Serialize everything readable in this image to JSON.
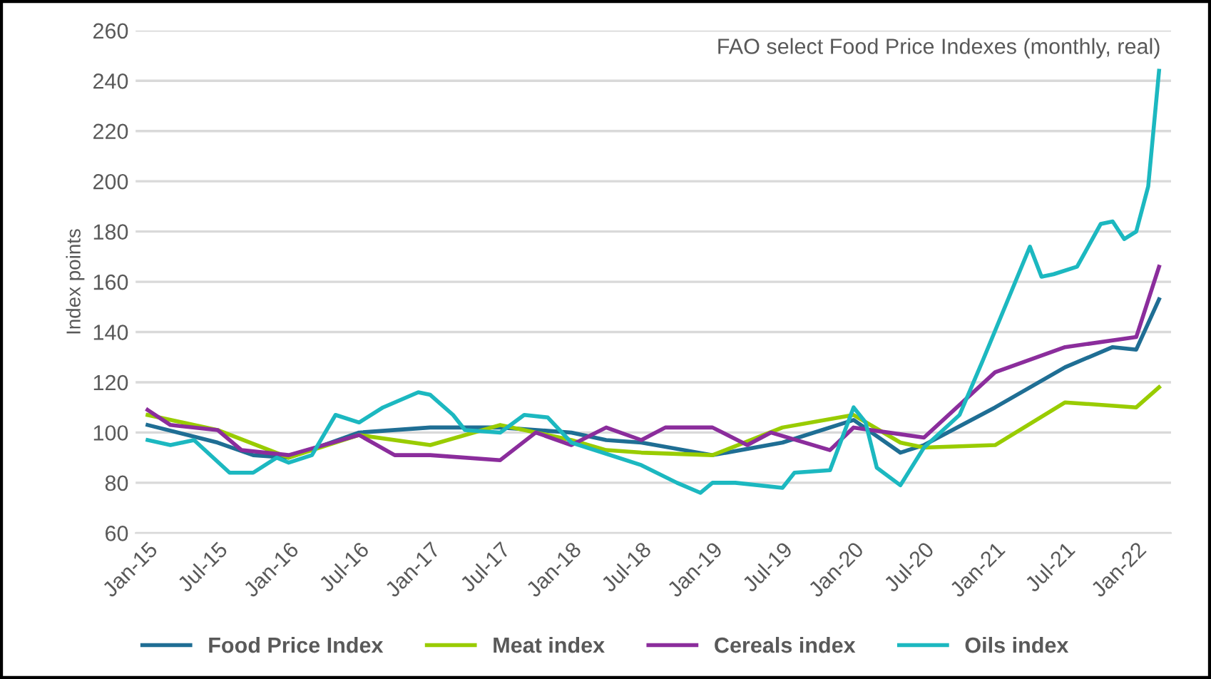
{
  "chart_data": {
    "type": "line",
    "title": "FAO select Food Price Indexes (monthly, real)",
    "ylabel": "Index points",
    "ylim": [
      60,
      260
    ],
    "yticks": [
      60,
      80,
      100,
      120,
      140,
      160,
      180,
      200,
      220,
      240,
      260
    ],
    "xlim": [
      "2014-12",
      "2022-04"
    ],
    "xticks": [
      {
        "value": "2015-01",
        "label": "Jan-15"
      },
      {
        "value": "2015-07",
        "label": "Jul-15"
      },
      {
        "value": "2016-01",
        "label": "Jan-16"
      },
      {
        "value": "2016-07",
        "label": "Jul-16"
      },
      {
        "value": "2017-01",
        "label": "Jan-17"
      },
      {
        "value": "2017-07",
        "label": "Jul-17"
      },
      {
        "value": "2018-01",
        "label": "Jan-18"
      },
      {
        "value": "2018-07",
        "label": "Jul-18"
      },
      {
        "value": "2019-01",
        "label": "Jan-19"
      },
      {
        "value": "2019-07",
        "label": "Jul-19"
      },
      {
        "value": "2020-01",
        "label": "Jan-20"
      },
      {
        "value": "2020-07",
        "label": "Jul-20"
      },
      {
        "value": "2021-01",
        "label": "Jan-21"
      },
      {
        "value": "2021-07",
        "label": "Jul-21"
      },
      {
        "value": "2022-01",
        "label": "Jan-22"
      }
    ],
    "grid": "y",
    "legend": "bottom",
    "marker": "none",
    "line_style": "solid",
    "series": [
      {
        "name": "Food Price Index",
        "color": "#1f6e94",
        "x": [
          "2015-01",
          "2015-07",
          "2015-10",
          "2016-01",
          "2016-07",
          "2017-01",
          "2017-07",
          "2018-01",
          "2018-04",
          "2018-07",
          "2019-01",
          "2019-07",
          "2020-01",
          "2020-05",
          "2020-07",
          "2021-01",
          "2021-07",
          "2021-11",
          "2022-01",
          "2022-03"
        ],
        "values": [
          103,
          96,
          91,
          90,
          100,
          102,
          102,
          100,
          97,
          96,
          91,
          96,
          105,
          92,
          95,
          110,
          126,
          134,
          133,
          153
        ]
      },
      {
        "name": "Meat index",
        "color": "#99cc00",
        "x": [
          "2015-01",
          "2015-07",
          "2016-01",
          "2016-07",
          "2017-01",
          "2017-07",
          "2018-01",
          "2018-04",
          "2018-07",
          "2019-01",
          "2019-07",
          "2020-01",
          "2020-05",
          "2020-07",
          "2021-01",
          "2021-07",
          "2022-01",
          "2022-03"
        ],
        "values": [
          107,
          101,
          90,
          99,
          95,
          103,
          97,
          93,
          92,
          91,
          102,
          107,
          96,
          94,
          95,
          112,
          110,
          118
        ]
      },
      {
        "name": "Cereals index",
        "color": "#8b2d9c",
        "x": [
          "2015-01",
          "2015-03",
          "2015-07",
          "2015-09",
          "2016-01",
          "2016-07",
          "2016-10",
          "2017-01",
          "2017-07",
          "2017-10",
          "2018-01",
          "2018-04",
          "2018-07",
          "2018-09",
          "2019-01",
          "2019-04",
          "2019-06",
          "2019-11",
          "2020-01",
          "2020-07",
          "2021-01",
          "2021-07",
          "2022-01",
          "2022-03"
        ],
        "values": [
          109,
          103,
          101,
          93,
          91,
          99,
          91,
          91,
          89,
          100,
          95,
          102,
          97,
          102,
          102,
          95,
          100,
          93,
          102,
          98,
          124,
          134,
          138,
          166
        ]
      },
      {
        "name": "Oils index",
        "color": "#1cb8c0",
        "x": [
          "2015-01",
          "2015-03",
          "2015-05",
          "2015-08",
          "2015-10",
          "2015-12",
          "2016-01",
          "2016-03",
          "2016-05",
          "2016-07",
          "2016-09",
          "2016-12",
          "2017-01",
          "2017-03",
          "2017-04",
          "2017-07",
          "2017-09",
          "2017-11",
          "2018-01",
          "2018-07",
          "2018-10",
          "2018-12",
          "2019-01",
          "2019-03",
          "2019-07",
          "2019-08",
          "2019-11",
          "2020-01",
          "2020-02",
          "2020-03",
          "2020-05",
          "2020-07",
          "2020-10",
          "2020-12",
          "2021-04",
          "2021-05",
          "2021-06",
          "2021-08",
          "2021-10",
          "2021-11",
          "2021-12",
          "2022-01",
          "2022-02",
          "2022-03"
        ],
        "values": [
          97,
          95,
          97,
          84,
          84,
          90,
          88,
          91,
          107,
          104,
          110,
          116,
          115,
          107,
          101,
          100,
          107,
          106,
          96,
          87,
          80,
          76,
          80,
          80,
          78,
          84,
          85,
          110,
          104,
          86,
          79,
          94,
          107,
          129,
          174,
          162,
          163,
          166,
          183,
          184,
          177,
          180,
          198,
          244
        ]
      }
    ]
  }
}
